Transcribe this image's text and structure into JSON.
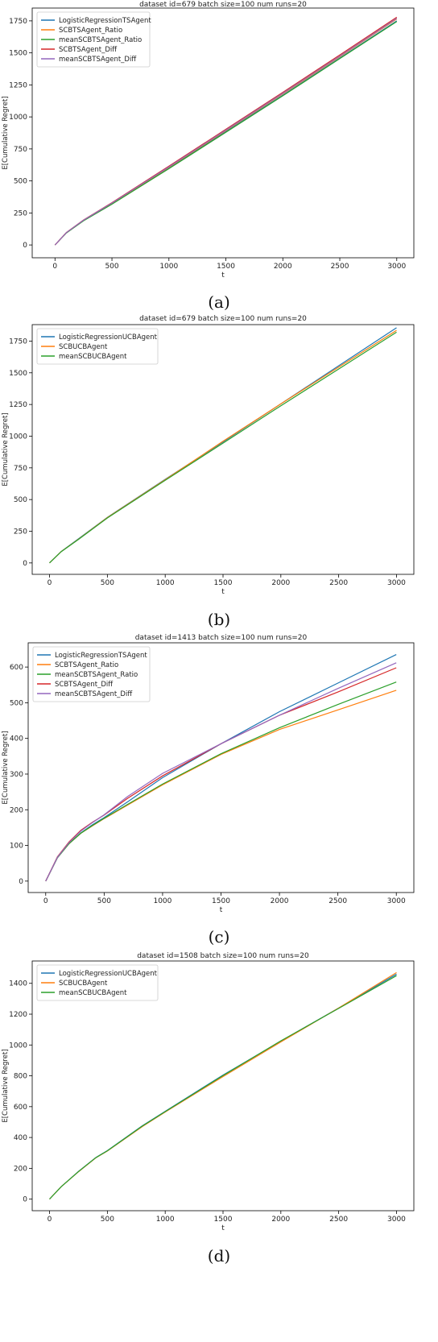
{
  "chart_data": [
    {
      "type": "line",
      "title": "dataset id=679 batch size=100 num runs=20",
      "xlabel": "t",
      "ylabel": "E[Cumulative Regret]",
      "caption": "(a)",
      "xlim": [
        -200,
        3150
      ],
      "ylim": [
        -100,
        1850
      ],
      "xticks": [
        0,
        500,
        1000,
        1500,
        2000,
        2500,
        3000
      ],
      "yticks": [
        0,
        250,
        500,
        750,
        1000,
        1250,
        1500,
        1750
      ],
      "grid": false,
      "legend_loc": "upper left",
      "x": [
        0,
        100,
        250,
        500,
        1000,
        1500,
        2000,
        2500,
        3000
      ],
      "series": [
        {
          "name": "LogisticRegressionTSAgent",
          "color": "#1f77b4",
          "values": [
            0,
            95,
            190,
            320,
            600,
            885,
            1170,
            1460,
            1750
          ]
        },
        {
          "name": "SCBTSAgent_Ratio",
          "color": "#ff7f0e",
          "values": [
            0,
            96,
            192,
            325,
            607,
            893,
            1180,
            1470,
            1765
          ]
        },
        {
          "name": "meanSCBTSAgent_Ratio",
          "color": "#2ca02c",
          "values": [
            0,
            94,
            189,
            318,
            596,
            880,
            1165,
            1455,
            1745
          ]
        },
        {
          "name": "SCBTSAgent_Diff",
          "color": "#d62728",
          "values": [
            0,
            97,
            195,
            330,
            615,
            903,
            1192,
            1483,
            1778
          ]
        },
        {
          "name": "meanSCBTSAgent_Diff",
          "color": "#9467bd",
          "values": [
            0,
            96,
            193,
            327,
            610,
            897,
            1185,
            1475,
            1770
          ]
        }
      ]
    },
    {
      "type": "line",
      "title": "dataset id=679 batch size=100 num runs=20",
      "xlabel": "t",
      "ylabel": "E[Cumulative Regret]",
      "caption": "(b)",
      "xlim": [
        -150,
        3150
      ],
      "ylim": [
        -90,
        1880
      ],
      "xticks": [
        0,
        500,
        1000,
        1500,
        2000,
        2500,
        3000
      ],
      "yticks": [
        0,
        250,
        500,
        750,
        1000,
        1250,
        1500,
        1750
      ],
      "grid": false,
      "legend_loc": "upper left",
      "x": [
        0,
        100,
        250,
        500,
        1000,
        1500,
        2000,
        2500,
        3000
      ],
      "series": [
        {
          "name": "LogisticRegressionUCBAgent",
          "color": "#1f77b4",
          "values": [
            0,
            90,
            190,
            360,
            660,
            955,
            1255,
            1555,
            1855
          ]
        },
        {
          "name": "SCBUCBAgent",
          "color": "#ff7f0e",
          "values": [
            0,
            89,
            188,
            358,
            657,
            960,
            1255,
            1545,
            1835
          ]
        },
        {
          "name": "meanSCBUCBAgent",
          "color": "#2ca02c",
          "values": [
            0,
            88,
            186,
            355,
            652,
            945,
            1240,
            1530,
            1820
          ]
        }
      ]
    },
    {
      "type": "line",
      "title": "dataset id=1413 batch size=100 num runs=20",
      "xlabel": "t",
      "ylabel": "E[Cumulative Regret]",
      "caption": "(c)",
      "xlim": [
        -150,
        3150
      ],
      "ylim": [
        -32,
        668
      ],
      "xticks": [
        0,
        500,
        1000,
        1500,
        2000,
        2500,
        3000
      ],
      "yticks": [
        0,
        100,
        200,
        300,
        400,
        500,
        600
      ],
      "grid": false,
      "legend_loc": "upper left",
      "x": [
        0,
        100,
        200,
        300,
        400,
        500,
        700,
        1000,
        1500,
        2000,
        2500,
        3000
      ],
      "series": [
        {
          "name": "LogisticRegressionTSAgent",
          "color": "#1f77b4",
          "values": [
            0,
            65,
            105,
            135,
            158,
            178,
            222,
            290,
            385,
            475,
            555,
            635
          ]
        },
        {
          "name": "SCBTSAgent_Ratio",
          "color": "#ff7f0e",
          "values": [
            0,
            66,
            105,
            134,
            155,
            175,
            213,
            270,
            355,
            425,
            480,
            535
          ]
        },
        {
          "name": "meanSCBTSAgent_Ratio",
          "color": "#2ca02c",
          "values": [
            0,
            66,
            105,
            134,
            156,
            176,
            215,
            272,
            357,
            430,
            495,
            558
          ]
        },
        {
          "name": "SCBTSAgent_Diff",
          "color": "#d62728",
          "values": [
            0,
            68,
            110,
            142,
            165,
            185,
            232,
            295,
            385,
            465,
            530,
            598
          ]
        },
        {
          "name": "meanSCBTSAgent_Diff",
          "color": "#9467bd",
          "values": [
            0,
            67,
            108,
            140,
            164,
            186,
            237,
            302,
            385,
            465,
            540,
            612
          ]
        }
      ]
    },
    {
      "type": "line",
      "title": "dataset id=1508 batch size=100 num runs=20",
      "xlabel": "t",
      "ylabel": "E[Cumulative Regret]",
      "caption": "(d)",
      "xlim": [
        -150,
        3150
      ],
      "ylim": [
        -75,
        1545
      ],
      "xticks": [
        0,
        500,
        1000,
        1500,
        2000,
        2500,
        3000
      ],
      "yticks": [
        0,
        200,
        400,
        600,
        800,
        1000,
        1200,
        1400
      ],
      "grid": false,
      "legend_loc": "upper left",
      "x": [
        0,
        100,
        250,
        400,
        500,
        800,
        1000,
        1500,
        2000,
        2500,
        3000
      ],
      "series": [
        {
          "name": "LogisticRegressionUCBAgent",
          "color": "#1f77b4",
          "values": [
            0,
            80,
            180,
            270,
            315,
            475,
            570,
            805,
            1025,
            1240,
            1460
          ]
        },
        {
          "name": "SCBUCBAgent",
          "color": "#ff7f0e",
          "values": [
            0,
            80,
            178,
            268,
            312,
            470,
            565,
            795,
            1020,
            1240,
            1470
          ]
        },
        {
          "name": "meanSCBUCBAgent",
          "color": "#2ca02c",
          "values": [
            0,
            80,
            179,
            269,
            314,
            473,
            568,
            802,
            1027,
            1237,
            1450
          ]
        }
      ]
    }
  ]
}
